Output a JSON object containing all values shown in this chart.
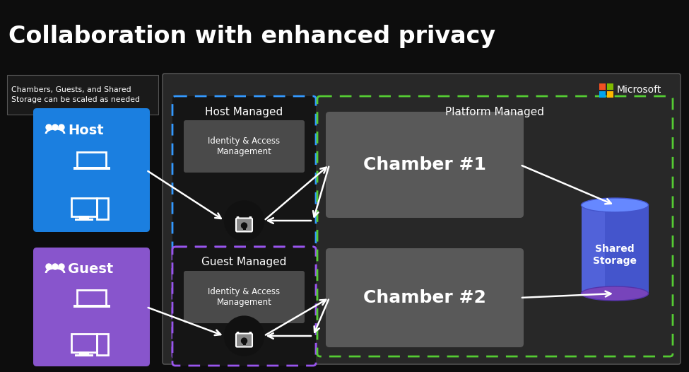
{
  "title": "Collaboration with enhanced privacy",
  "bg_color": "#0d0d0d",
  "main_panel_bg": "#2b2b2b",
  "host_box_color": "#1b7fe0",
  "guest_box_color": "#8855cc",
  "chamber_box_color": "#595959",
  "iam_box_color": "#484848",
  "host_managed_border": "#3399ff",
  "guest_managed_border": "#9955ee",
  "platform_managed_border": "#55cc33",
  "text_color": "#ffffff",
  "note_text": "Chambers, Guests, and Shared\nStorage can be scaled as needed",
  "host_label": "Host",
  "guest_label": "Guest",
  "host_managed_label": "Host Managed",
  "guest_managed_label": "Guest Managed",
  "platform_managed_label": "Platform Managed",
  "chamber1_label": "Chamber #1",
  "chamber2_label": "Chamber #2",
  "iam_label": "Identity & Access\nManagement",
  "shared_storage_label": "Shared\nStorage",
  "microsoft_label": "Microsoft",
  "ms_colors": [
    "#f25022",
    "#7fba00",
    "#00a4ef",
    "#ffb900"
  ]
}
